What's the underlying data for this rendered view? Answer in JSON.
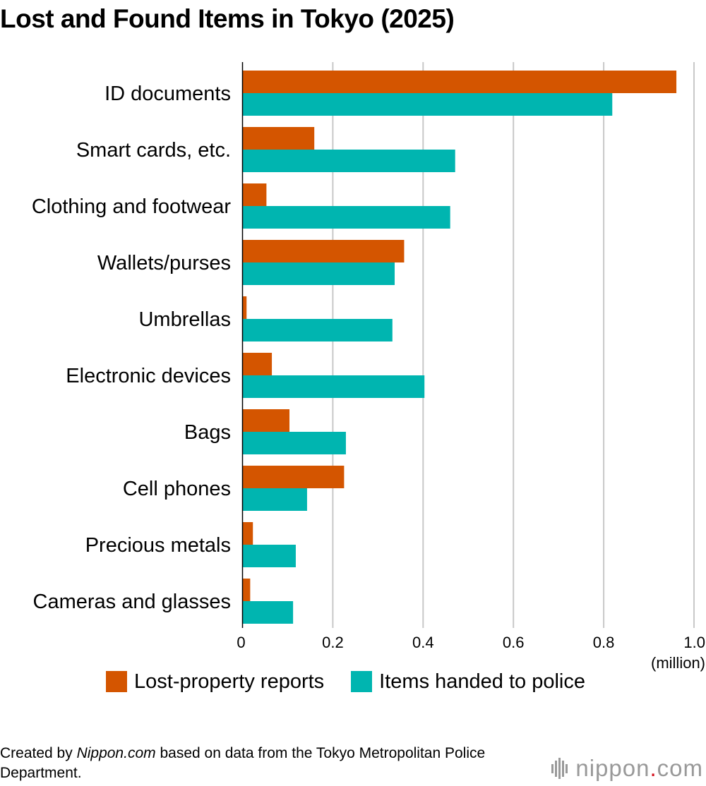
{
  "chart_data": {
    "type": "bar",
    "orientation": "horizontal",
    "title": "Lost and Found Items in Tokyo (2025)",
    "categories": [
      "ID documents",
      "Smart cards, etc.",
      "Clothing and footwear",
      "Wallets/purses",
      "Umbrellas",
      "Electronic devices",
      "Bags",
      "Cell phones",
      "Precious metals",
      "Cameras and glasses"
    ],
    "series": [
      {
        "name": "Lost-property reports",
        "color": "#d45500",
        "values": [
          0.961,
          0.159,
          0.053,
          0.358,
          0.009,
          0.065,
          0.104,
          0.225,
          0.023,
          0.017
        ]
      },
      {
        "name": "Items handed to police",
        "color": "#00b5b0",
        "values": [
          0.819,
          0.471,
          0.46,
          0.337,
          0.332,
          0.403,
          0.229,
          0.143,
          0.118,
          0.112
        ]
      }
    ],
    "xlim": [
      0,
      1.0
    ],
    "xticks": [
      0,
      0.2,
      0.4,
      0.6,
      0.8,
      1.0
    ],
    "xtick_labels": [
      "0",
      "0.2",
      "0.4",
      "0.6",
      "0.8",
      "1.0"
    ],
    "xlabel": "(million)",
    "grid": true,
    "legend_position": "bottom"
  },
  "source": {
    "prefix": "Created by ",
    "site": "Nippon.com",
    "suffix": " based on data from the Tokyo Metropolitan Police Department."
  },
  "brand": {
    "name_left": "nippon",
    "dot": ".",
    "name_right": "com"
  }
}
